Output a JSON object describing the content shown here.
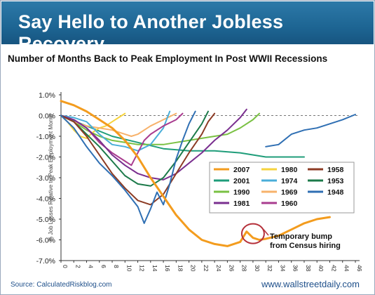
{
  "header": {
    "title": "Say Hello to Another Jobless Recovery",
    "subtitle": "Number of Months Back to Peak Employment In Post WWII Recessions"
  },
  "footer": {
    "source": "Source: CalculatedRiskblog.com",
    "site": "www.wallstreetdaily.com"
  },
  "chart_data": {
    "type": "line",
    "title": "Number of Months Back to Peak Employment In Post WWII Recessions",
    "ylabel": "% Job Losses Relative to Peak Employment Month",
    "xlabel": "",
    "xlim": [
      0,
      46
    ],
    "ylim": [
      -7,
      1
    ],
    "x_ticks": [
      0,
      2,
      4,
      6,
      8,
      10,
      12,
      14,
      16,
      18,
      20,
      22,
      24,
      26,
      28,
      30,
      32,
      34,
      36,
      38,
      40,
      42,
      44,
      46
    ],
    "y_ticks": [
      "1.0%",
      "0.0%",
      "-1.0%",
      "-2.0%",
      "-3.0%",
      "-4.0%",
      "-5.0%",
      "-6.0%",
      "-7.0%"
    ],
    "y_tick_values": [
      1,
      0,
      -1,
      -2,
      -3,
      -4,
      -5,
      -6,
      -7
    ],
    "grid": false,
    "reference_line": 0,
    "legend": "inside, lower-right",
    "series": [
      {
        "name": "2007",
        "color": "#f39c1e",
        "x": [
          0,
          2,
          4,
          6,
          8,
          10,
          12,
          14,
          16,
          18,
          20,
          22,
          24,
          26,
          28,
          29,
          30,
          31,
          32,
          34,
          36,
          38,
          40,
          42
        ],
        "y": [
          0.7,
          0.5,
          0.2,
          -0.2,
          -0.6,
          -1.2,
          -2.0,
          -3.0,
          -3.9,
          -4.8,
          -5.5,
          -6.0,
          -6.2,
          -6.3,
          -6.1,
          -5.6,
          -5.9,
          -6.0,
          -5.95,
          -5.8,
          -5.5,
          -5.2,
          -5.0,
          -4.9
        ]
      },
      {
        "name": "2001",
        "color": "#1f9d7a",
        "x": [
          0,
          4,
          8,
          12,
          16,
          20,
          24,
          28,
          32,
          34,
          36,
          38
        ],
        "y": [
          0,
          -0.5,
          -1.0,
          -1.3,
          -1.6,
          -1.7,
          -1.7,
          -1.8,
          -2.0,
          -2.0,
          -2.0,
          -2.0
        ]
      },
      {
        "name": "1990",
        "color": "#7ac143",
        "x": [
          0,
          2,
          4,
          6,
          8,
          10,
          12,
          14,
          16,
          18,
          20,
          22,
          24,
          26,
          28,
          30,
          31
        ],
        "y": [
          0,
          -0.3,
          -0.7,
          -1.0,
          -1.2,
          -1.3,
          -1.4,
          -1.4,
          -1.4,
          -1.3,
          -1.2,
          -1.1,
          -1.0,
          -0.9,
          -0.6,
          -0.2,
          0.1
        ]
      },
      {
        "name": "1981",
        "color": "#7a2f8f",
        "x": [
          0,
          2,
          4,
          6,
          8,
          10,
          12,
          14,
          16,
          18,
          20,
          22,
          24,
          26,
          28,
          29
        ],
        "y": [
          0,
          -0.2,
          -0.6,
          -1.2,
          -1.9,
          -2.4,
          -2.8,
          -3.0,
          -3.1,
          -2.8,
          -2.3,
          -1.8,
          -1.2,
          -0.7,
          -0.1,
          0.3
        ]
      },
      {
        "name": "1980",
        "color": "#f6d33d",
        "x": [
          0,
          1,
          2,
          3,
          4,
          5,
          6,
          7,
          8,
          9,
          10
        ],
        "y": [
          0,
          -0.3,
          -0.7,
          -1.0,
          -1.1,
          -0.8,
          -0.6,
          -0.5,
          -0.3,
          -0.1,
          0.1
        ]
      },
      {
        "name": "1974",
        "color": "#4aaed9",
        "x": [
          0,
          2,
          4,
          6,
          8,
          10,
          12,
          14,
          16,
          17
        ],
        "y": [
          0,
          -0.1,
          -0.3,
          -0.9,
          -1.4,
          -1.5,
          -1.7,
          -1.4,
          -0.6,
          0.2
        ]
      },
      {
        "name": "1969",
        "color": "#f7b26b",
        "x": [
          0,
          2,
          4,
          6,
          8,
          10,
          11,
          12,
          14,
          16,
          18
        ],
        "y": [
          0,
          -0.3,
          -0.5,
          -0.6,
          -0.7,
          -0.9,
          -1.0,
          -0.9,
          -0.5,
          -0.2,
          0.1
        ]
      },
      {
        "name": "1960",
        "color": "#a93c8f",
        "x": [
          0,
          2,
          4,
          6,
          8,
          10,
          11,
          12,
          13,
          14,
          16,
          18,
          19
        ],
        "y": [
          0,
          -0.2,
          -0.6,
          -1.3,
          -1.8,
          -2.2,
          -2.4,
          -1.8,
          -1.2,
          -0.9,
          -0.5,
          -0.2,
          0.1
        ]
      },
      {
        "name": "1958",
        "color": "#8c3b24",
        "x": [
          0,
          2,
          4,
          6,
          8,
          10,
          12,
          14,
          16,
          18,
          20,
          22,
          23,
          24
        ],
        "y": [
          0,
          -0.3,
          -1.0,
          -1.9,
          -2.8,
          -3.5,
          -4.1,
          -4.3,
          -3.8,
          -2.8,
          -1.8,
          -0.9,
          -0.3,
          0.1
        ]
      },
      {
        "name": "1953",
        "color": "#1c7a4a",
        "x": [
          0,
          2,
          4,
          6,
          8,
          10,
          12,
          14,
          16,
          18,
          20,
          22,
          23
        ],
        "y": [
          0,
          -0.3,
          -0.9,
          -1.5,
          -2.2,
          -2.9,
          -3.3,
          -3.4,
          -3.0,
          -2.2,
          -1.3,
          -0.4,
          0.2
        ]
      },
      {
        "name": "1948",
        "color": "#2f6fb3",
        "x": [
          0,
          2,
          4,
          6,
          8,
          10,
          12,
          13,
          14,
          15,
          16,
          17,
          18,
          19,
          20,
          21
        ],
        "y": [
          0,
          -0.6,
          -1.5,
          -2.3,
          -2.9,
          -3.6,
          -4.4,
          -5.2,
          -4.5,
          -3.7,
          -4.3,
          -3.3,
          -2.1,
          -1.2,
          -0.4,
          0.2
        ]
      },
      {
        "name": "",
        "color": "#2f6fb3",
        "x": [
          32,
          34,
          36,
          38,
          40,
          42,
          44,
          46
        ],
        "y": [
          -1.5,
          -1.4,
          -0.9,
          -0.7,
          -0.6,
          -0.4,
          -0.2,
          0.05
        ]
      }
    ],
    "annotations": [
      {
        "text_lines": [
          "Temporary bump",
          "from Census hiring"
        ],
        "x": 30,
        "y": -5.7
      }
    ]
  }
}
